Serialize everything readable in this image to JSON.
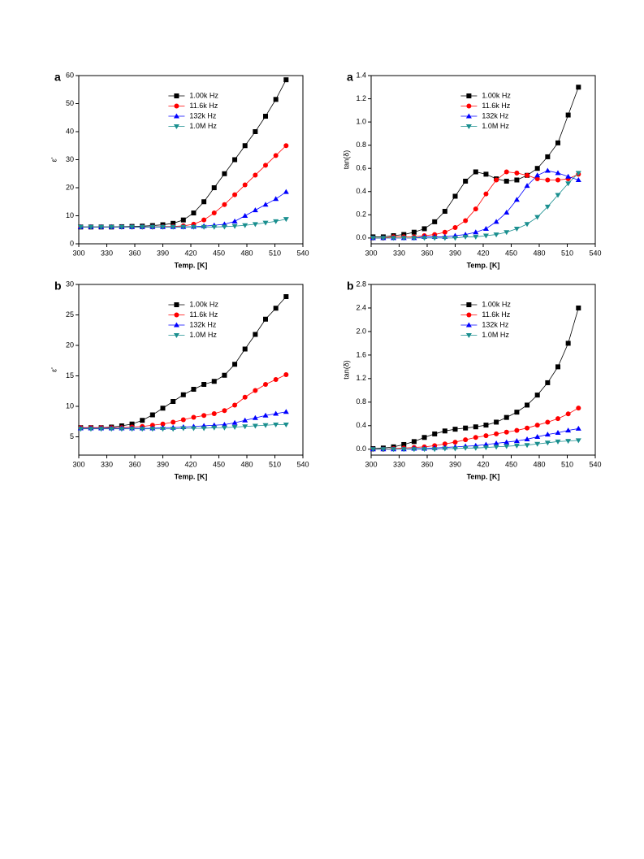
{
  "chart_data": [
    {
      "type": "line",
      "panel_label": "a",
      "ylabel": "ε'",
      "xlabel": "Temp. [K]",
      "x": [
        302,
        313,
        324,
        335,
        346,
        357,
        368,
        379,
        390,
        401,
        412,
        423,
        434,
        445,
        456,
        467,
        478,
        489,
        500,
        511,
        522
      ],
      "xlim": [
        300,
        540
      ],
      "xticks": [
        300,
        330,
        360,
        390,
        420,
        450,
        480,
        510,
        540
      ],
      "ylim": [
        0,
        60
      ],
      "yticks": [
        0,
        10,
        20,
        30,
        40,
        50,
        60
      ],
      "legend": "upper center",
      "series": [
        {
          "name": "1.00k Hz",
          "color": "#000000",
          "marker": "square",
          "values": [
            6,
            6,
            6,
            6,
            6.1,
            6.2,
            6.3,
            6.5,
            6.8,
            7.3,
            8.5,
            11,
            15,
            20,
            25,
            30,
            35,
            40,
            45.5,
            51.5,
            58.5
          ]
        },
        {
          "name": "11.6k Hz",
          "color": "#ff0000",
          "marker": "circle",
          "values": [
            6,
            6,
            6,
            6,
            6,
            6,
            6,
            6,
            6.1,
            6.2,
            6.4,
            7,
            8.5,
            11,
            14,
            17.5,
            21,
            24.5,
            28,
            31.5,
            35
          ]
        },
        {
          "name": "132k Hz",
          "color": "#0000ff",
          "marker": "triangle-up",
          "values": [
            6,
            6,
            6,
            6,
            6,
            6,
            6,
            6,
            6,
            6,
            6,
            6.1,
            6.3,
            6.6,
            7,
            8,
            10,
            12,
            14,
            16,
            18.5
          ]
        },
        {
          "name": "1.0M Hz",
          "color": "#1a8f8f",
          "marker": "triangle-down",
          "values": [
            6,
            6,
            6,
            6,
            6,
            6,
            6,
            6,
            6,
            6,
            6,
            6,
            6,
            6,
            6.1,
            6.3,
            6.6,
            7,
            7.5,
            8,
            8.8
          ]
        }
      ]
    },
    {
      "type": "line",
      "panel_label": "a",
      "ylabel": "tan(δ)",
      "xlabel": "Temp. [K]",
      "x": [
        302,
        313,
        324,
        335,
        346,
        357,
        368,
        379,
        390,
        401,
        412,
        423,
        434,
        445,
        456,
        467,
        478,
        489,
        500,
        511,
        522
      ],
      "xlim": [
        300,
        540
      ],
      "xticks": [
        300,
        330,
        360,
        390,
        420,
        450,
        480,
        510,
        540
      ],
      "ylim": [
        -0.05,
        1.4
      ],
      "yticks": [
        {
          "value": 0,
          "label": "0.0"
        },
        0.2,
        0.4,
        0.6,
        0.8,
        {
          "value": 1,
          "label": "1.0"
        },
        1.2,
        1.4
      ],
      "legend": "upper center",
      "series": [
        {
          "name": "1.00k Hz",
          "color": "#000000",
          "marker": "square",
          "values": [
            0.01,
            0.01,
            0.02,
            0.03,
            0.05,
            0.08,
            0.14,
            0.23,
            0.36,
            0.49,
            0.57,
            0.55,
            0.51,
            0.49,
            0.5,
            0.54,
            0.6,
            0.7,
            0.82,
            1.06,
            1.3
          ]
        },
        {
          "name": "11.6k Hz",
          "color": "#ff0000",
          "marker": "circle",
          "values": [
            0,
            0,
            0.01,
            0.01,
            0.01,
            0.02,
            0.03,
            0.05,
            0.09,
            0.15,
            0.25,
            0.38,
            0.5,
            0.57,
            0.56,
            0.54,
            0.51,
            0.5,
            0.5,
            0.51,
            0.55
          ]
        },
        {
          "name": "132k Hz",
          "color": "#0000ff",
          "marker": "triangle-up",
          "values": [
            0,
            0,
            0,
            0,
            0,
            0.01,
            0.01,
            0.01,
            0.02,
            0.03,
            0.05,
            0.08,
            0.14,
            0.22,
            0.33,
            0.45,
            0.54,
            0.58,
            0.56,
            0.53,
            0.5
          ]
        },
        {
          "name": "1.0M Hz",
          "color": "#1a8f8f",
          "marker": "triangle-down",
          "values": [
            0,
            0,
            0,
            0,
            0,
            0,
            0,
            0,
            0,
            0.01,
            0.01,
            0.02,
            0.03,
            0.05,
            0.08,
            0.12,
            0.18,
            0.27,
            0.37,
            0.47,
            0.56
          ]
        }
      ]
    },
    {
      "type": "line",
      "panel_label": "b",
      "ylabel": "ε'",
      "xlabel": "Temp. [K]",
      "x": [
        302,
        313,
        324,
        335,
        346,
        357,
        368,
        379,
        390,
        401,
        412,
        423,
        434,
        445,
        456,
        467,
        478,
        489,
        500,
        511,
        522
      ],
      "xlim": [
        300,
        540
      ],
      "xticks": [
        300,
        330,
        360,
        390,
        420,
        450,
        480,
        510,
        540
      ],
      "ylim": [
        2,
        30
      ],
      "yticks": [
        5,
        10,
        15,
        20,
        25,
        30
      ],
      "legend": "upper center",
      "series": [
        {
          "name": "1.00k Hz",
          "color": "#000000",
          "marker": "square",
          "values": [
            6.5,
            6.5,
            6.5,
            6.6,
            6.8,
            7.1,
            7.7,
            8.6,
            9.7,
            10.8,
            11.9,
            12.8,
            13.6,
            14.1,
            15.1,
            16.9,
            19.4,
            21.8,
            24.3,
            26.1,
            28
          ]
        },
        {
          "name": "11.6k Hz",
          "color": "#ff0000",
          "marker": "circle",
          "values": [
            6.5,
            6.5,
            6.5,
            6.5,
            6.5,
            6.6,
            6.7,
            6.9,
            7.1,
            7.4,
            7.8,
            8.2,
            8.5,
            8.8,
            9.3,
            10.2,
            11.5,
            12.6,
            13.6,
            14.4,
            15.2
          ]
        },
        {
          "name": "132k Hz",
          "color": "#0000ff",
          "marker": "triangle-up",
          "values": [
            6.4,
            6.4,
            6.4,
            6.4,
            6.4,
            6.4,
            6.4,
            6.4,
            6.5,
            6.5,
            6.6,
            6.7,
            6.8,
            6.9,
            7,
            7.3,
            7.7,
            8.1,
            8.5,
            8.8,
            9.1
          ]
        },
        {
          "name": "1.0M Hz",
          "color": "#1a8f8f",
          "marker": "triangle-down",
          "values": [
            6.3,
            6.3,
            6.3,
            6.3,
            6.3,
            6.3,
            6.3,
            6.3,
            6.3,
            6.3,
            6.4,
            6.4,
            6.4,
            6.5,
            6.5,
            6.6,
            6.7,
            6.8,
            6.9,
            7,
            7
          ]
        }
      ]
    },
    {
      "type": "line",
      "panel_label": "b",
      "ylabel": "tan(δ)",
      "xlabel": "Temp. [K]",
      "x": [
        302,
        313,
        324,
        335,
        346,
        357,
        368,
        379,
        390,
        401,
        412,
        423,
        434,
        445,
        456,
        467,
        478,
        489,
        500,
        511,
        522
      ],
      "xlim": [
        300,
        540
      ],
      "xticks": [
        300,
        330,
        360,
        390,
        420,
        450,
        480,
        510,
        540
      ],
      "ylim": [
        -0.1,
        2.8
      ],
      "yticks": [
        {
          "value": 0,
          "label": "0.0"
        },
        0.4,
        0.8,
        1.2,
        1.6,
        {
          "value": 2,
          "label": "2.0"
        },
        2.4,
        2.8
      ],
      "legend": "upper center",
      "series": [
        {
          "name": "1.00k Hz",
          "color": "#000000",
          "marker": "square",
          "values": [
            0.01,
            0.02,
            0.04,
            0.08,
            0.13,
            0.2,
            0.26,
            0.31,
            0.34,
            0.36,
            0.38,
            0.41,
            0.46,
            0.54,
            0.63,
            0.75,
            0.92,
            1.13,
            1.4,
            1.8,
            2.4
          ]
        },
        {
          "name": "11.6k Hz",
          "color": "#ff0000",
          "marker": "circle",
          "values": [
            0,
            0,
            0.01,
            0.02,
            0.03,
            0.04,
            0.06,
            0.09,
            0.12,
            0.16,
            0.2,
            0.23,
            0.26,
            0.29,
            0.32,
            0.36,
            0.41,
            0.46,
            0.52,
            0.6,
            0.7
          ]
        },
        {
          "name": "132k Hz",
          "color": "#0000ff",
          "marker": "triangle-up",
          "values": [
            0,
            0,
            0,
            0,
            0.01,
            0.01,
            0.02,
            0.03,
            0.04,
            0.05,
            0.06,
            0.08,
            0.1,
            0.12,
            0.14,
            0.17,
            0.21,
            0.25,
            0.28,
            0.32,
            0.35
          ]
        },
        {
          "name": "1.0M Hz",
          "color": "#1a8f8f",
          "marker": "triangle-down",
          "values": [
            0,
            0,
            0,
            0,
            0,
            0,
            0,
            0.01,
            0.01,
            0.02,
            0.02,
            0.03,
            0.04,
            0.05,
            0.06,
            0.07,
            0.09,
            0.11,
            0.13,
            0.14,
            0.15
          ]
        }
      ]
    }
  ]
}
